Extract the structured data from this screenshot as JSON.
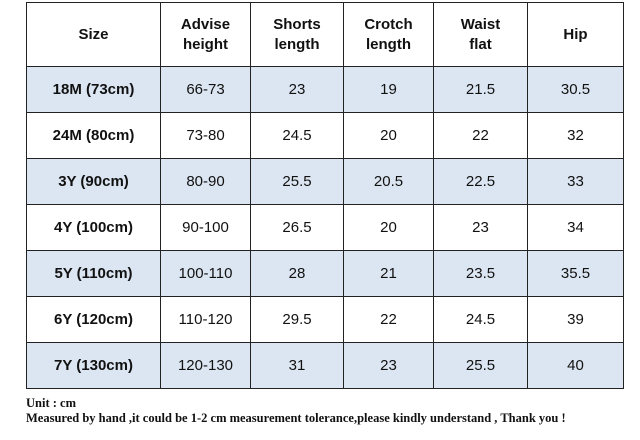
{
  "table": {
    "header": [
      "Size",
      "Advise height",
      "Shorts length",
      "Crotch length",
      "Waist flat",
      "Hip"
    ],
    "rows": [
      [
        "18M (73cm)",
        "66-73",
        "23",
        "19",
        "21.5",
        "30.5"
      ],
      [
        "24M (80cm)",
        "73-80",
        "24.5",
        "20",
        "22",
        "32"
      ],
      [
        "3Y (90cm)",
        "80-90",
        "25.5",
        "20.5",
        "22.5",
        "33"
      ],
      [
        "4Y (100cm)",
        "90-100",
        "26.5",
        "20",
        "23",
        "34"
      ],
      [
        "5Y (110cm)",
        "100-110",
        "28",
        "21",
        "23.5",
        "35.5"
      ],
      [
        "6Y (120cm)",
        "110-120",
        "29.5",
        "22",
        "24.5",
        "39"
      ],
      [
        "7Y (130cm)",
        "120-130",
        "31",
        "23",
        "25.5",
        "40"
      ]
    ]
  },
  "notes": [
    "Unit : cm",
    "Measured by hand ,it could be 1-2 cm measurement tolerance,please kindly understand , Thank you !"
  ]
}
